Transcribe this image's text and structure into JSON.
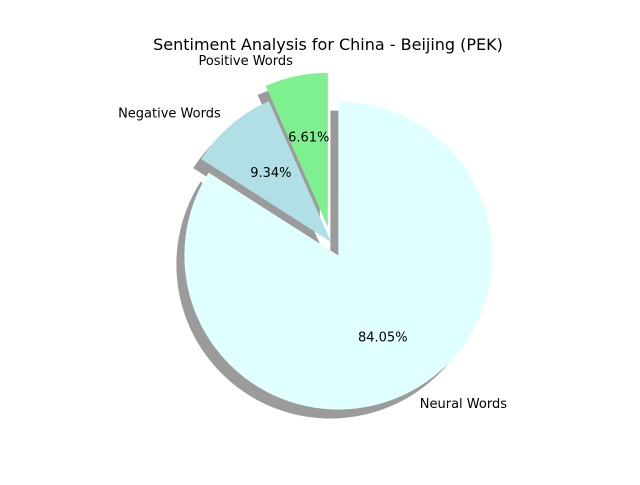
{
  "chart_data": {
    "type": "pie",
    "title": "Sentiment Analysis for China - Beijing (PEK)",
    "slices": [
      {
        "label": "Positive Words",
        "value": 6.61,
        "pct_label": "6.61%",
        "color": "#7ef08f",
        "exploded": true
      },
      {
        "label": "Negative Words",
        "value": 9.34,
        "pct_label": "9.34%",
        "color": "#b0dfe5",
        "exploded": false
      },
      {
        "label": "Neural Words",
        "value": 84.05,
        "pct_label": "84.05%",
        "color": "#e0ffff",
        "exploded": true
      }
    ],
    "shadow": true,
    "start_angle_deg": 90,
    "direction": "counterclockwise"
  }
}
